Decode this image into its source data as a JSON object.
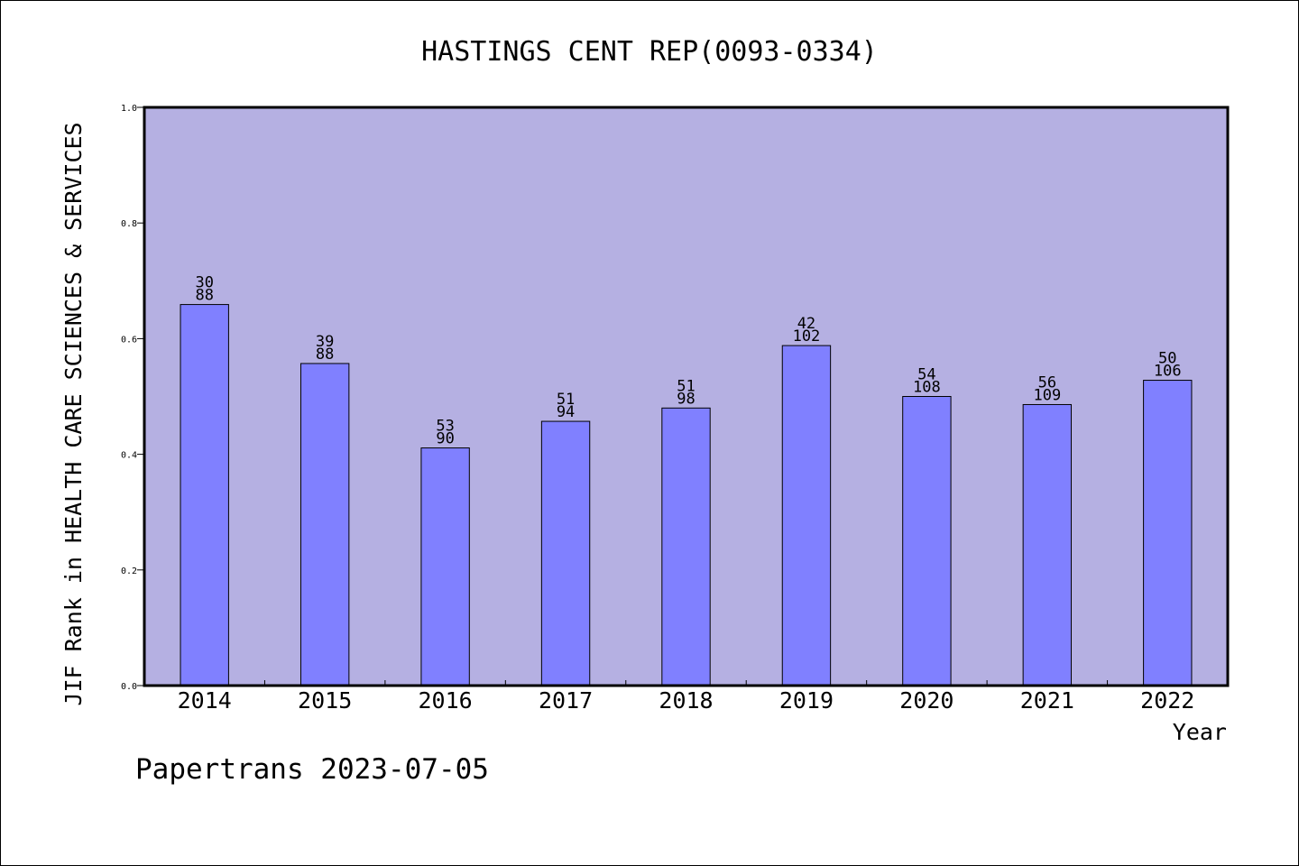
{
  "chart_data": {
    "type": "bar",
    "title": "HASTINGS CENT REP(0093-0334)",
    "xlabel": "Year",
    "ylabel": "JIF Rank in HEALTH CARE SCIENCES & SERVICES",
    "categories": [
      "2014",
      "2015",
      "2016",
      "2017",
      "2018",
      "2019",
      "2020",
      "2021",
      "2022"
    ],
    "values": [
      0.659,
      0.557,
      0.411,
      0.457,
      0.48,
      0.588,
      0.5,
      0.486,
      0.528
    ],
    "rank": [
      "30",
      "39",
      "53",
      "51",
      "51",
      "42",
      "54",
      "56",
      "50"
    ],
    "total": [
      "88",
      "88",
      "90",
      "94",
      "98",
      "102",
      "108",
      "109",
      "106"
    ],
    "ylim": [
      0,
      1.0
    ],
    "yticks": [
      "0.0",
      "0.2",
      "0.4",
      "0.6",
      "0.8",
      "1.0"
    ],
    "grid": false,
    "colors": {
      "plot_background": "#b5b0e2",
      "bar_fill": "#8080ff",
      "bar_stroke": "#000000"
    }
  },
  "footer": {
    "text": "Papertrans 2023-07-05"
  }
}
